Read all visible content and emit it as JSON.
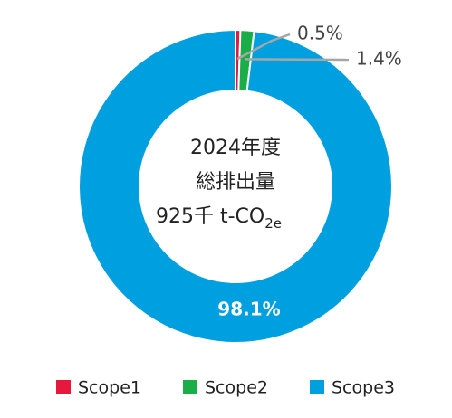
{
  "chart_data": {
    "type": "donut",
    "center_text": [
      "2024年度",
      "総排出量"
    ],
    "center_total": "925千 t-CO",
    "center_total_sub": "2e",
    "categories": [
      "Scope1",
      "Scope2",
      "Scope3"
    ],
    "values": [
      0.5,
      1.4,
      98.1
    ],
    "value_labels": [
      "0.5%",
      "1.4%",
      "98.1%"
    ],
    "colors": [
      "#e8173c",
      "#1aae48",
      "#009fe0"
    ]
  }
}
